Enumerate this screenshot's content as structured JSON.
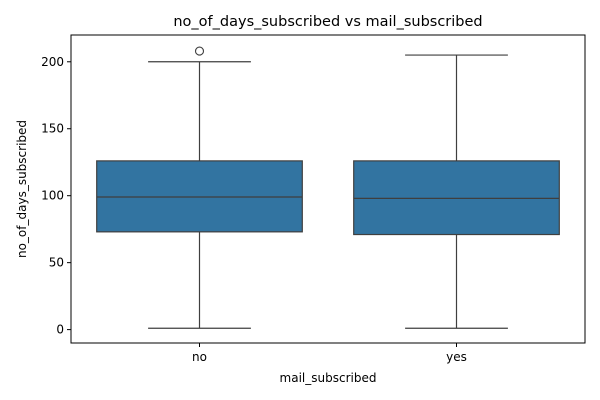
{
  "chart_data": {
    "type": "box",
    "title": "no_of_days_subscribed vs mail_subscribed",
    "xlabel": "mail_subscribed",
    "ylabel": "no_of_days_subscribed",
    "ylim": [
      -10,
      220
    ],
    "yticks": [
      0,
      50,
      100,
      150,
      200
    ],
    "grid": false,
    "categories": [
      "no",
      "yes"
    ],
    "boxes": [
      {
        "category": "no",
        "whisker_low": 1,
        "q1": 73,
        "median": 99,
        "q3": 126,
        "whisker_high": 200,
        "outliers": [
          208
        ]
      },
      {
        "category": "yes",
        "whisker_low": 1,
        "q1": 71,
        "median": 98,
        "q3": 126,
        "whisker_high": 205,
        "outliers": []
      }
    ],
    "colors": {
      "box_fill": "#3274a1",
      "line": "#3f3f3f",
      "axis": "#000000"
    }
  }
}
